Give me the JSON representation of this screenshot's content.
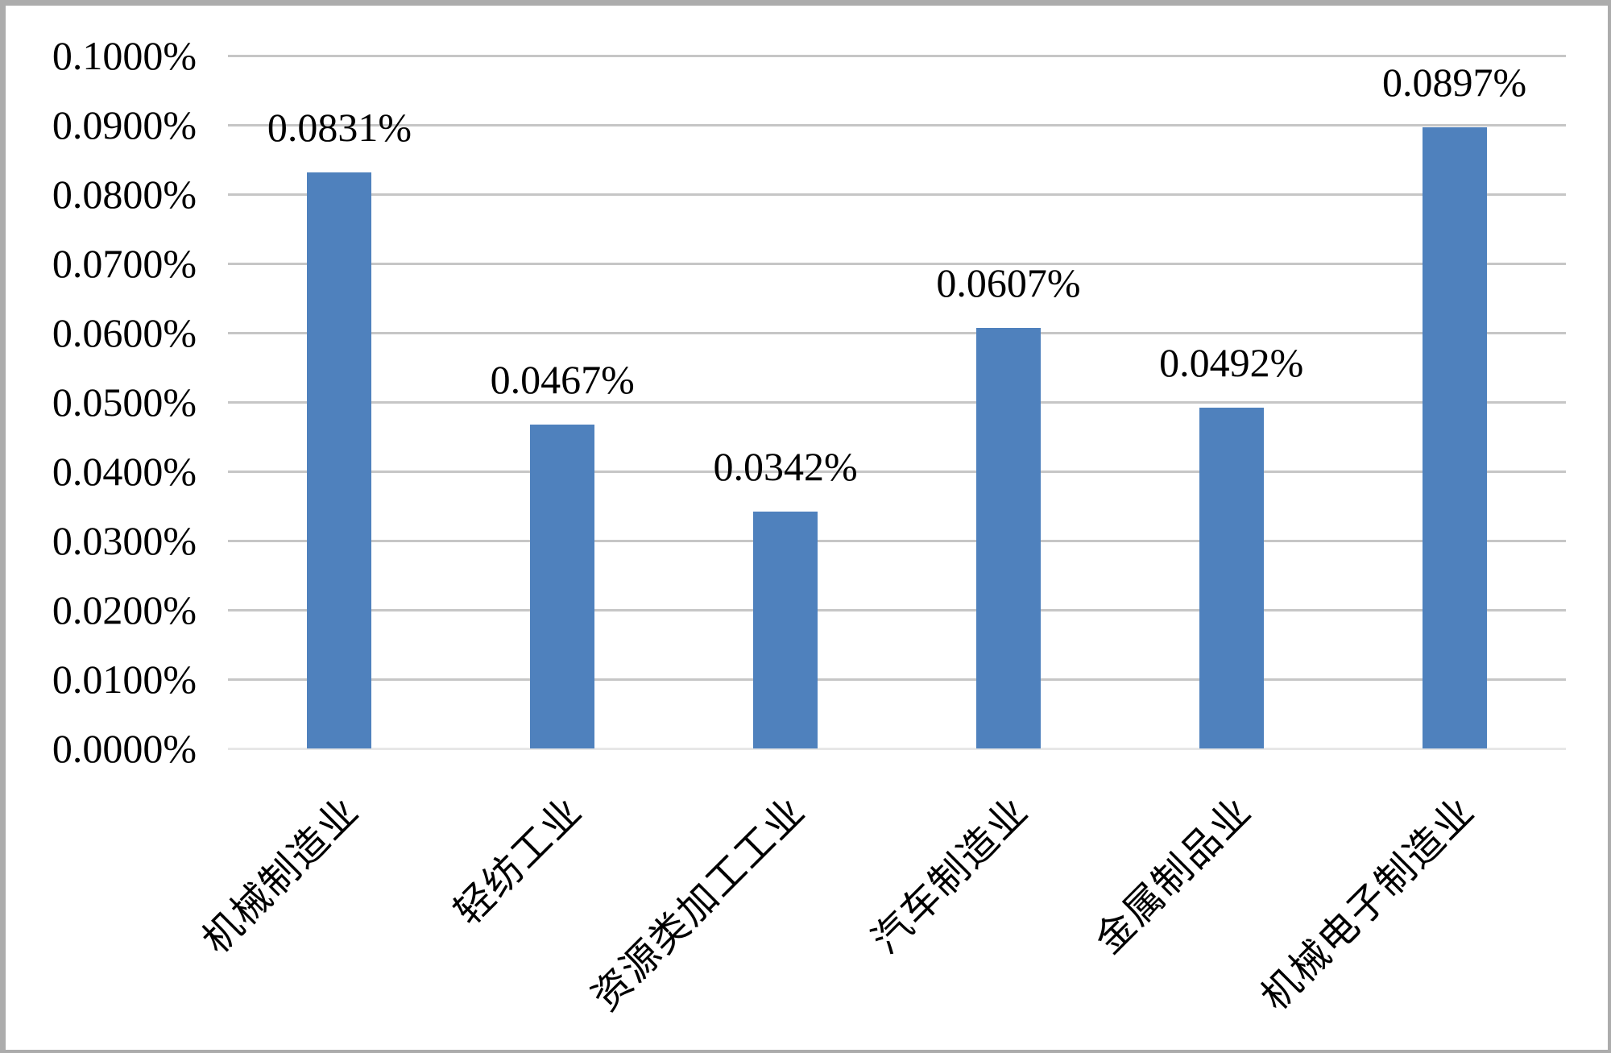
{
  "chart_data": {
    "type": "bar",
    "title": "",
    "xlabel": "",
    "ylabel": "",
    "unit": "%",
    "categories": [
      "机械制造业",
      "轻纺工业",
      "资源类加工工业",
      "汽车制造业",
      "金属制品业",
      "机械电子制造业"
    ],
    "values": [
      0.0831,
      0.0467,
      0.0342,
      0.0607,
      0.0492,
      0.0897
    ],
    "data_labels": [
      "0.0831%",
      "0.0467%",
      "0.0342%",
      "0.0607%",
      "0.0492%",
      "0.0897%"
    ],
    "y_ticks": [
      "0.1000%",
      "0.0900%",
      "0.0800%",
      "0.0700%",
      "0.0600%",
      "0.0500%",
      "0.0400%",
      "0.0300%",
      "0.0200%",
      "0.0100%",
      "0.0000%"
    ],
    "ylim": [
      0,
      0.1
    ],
    "grid": true,
    "legend": false,
    "bar_color": "#4F81BD",
    "gridline_color": "#C6C6C6",
    "baseline_color": "#E7E7E7",
    "text_color": "#000000",
    "frame_color": "#ACACAC",
    "background_color": "#FFFFFF"
  }
}
